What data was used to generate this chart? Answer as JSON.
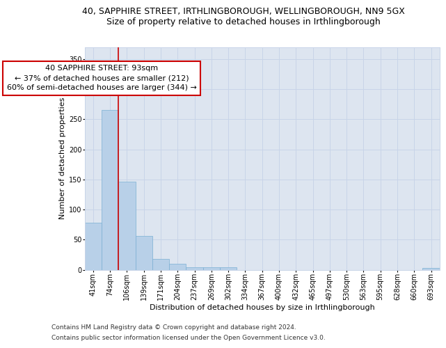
{
  "title_line1": "40, SAPPHIRE STREET, IRTHLINGBOROUGH, WELLINGBOROUGH, NN9 5GX",
  "title_line2": "Size of property relative to detached houses in Irthlingborough",
  "xlabel": "Distribution of detached houses by size in Irthlingborough",
  "ylabel": "Number of detached properties",
  "categories": [
    "41sqm",
    "74sqm",
    "106sqm",
    "139sqm",
    "171sqm",
    "204sqm",
    "237sqm",
    "269sqm",
    "302sqm",
    "334sqm",
    "367sqm",
    "400sqm",
    "432sqm",
    "465sqm",
    "497sqm",
    "530sqm",
    "563sqm",
    "595sqm",
    "628sqm",
    "660sqm",
    "693sqm"
  ],
  "values": [
    78,
    265,
    146,
    56,
    18,
    10,
    4,
    4,
    4,
    0,
    0,
    0,
    0,
    0,
    0,
    0,
    0,
    0,
    0,
    0,
    3
  ],
  "bar_color": "#b8d0e8",
  "bar_edge_color": "#7aafd4",
  "vline_index": 1.5,
  "vline_color": "#cc0000",
  "annotation_line1": "40 SAPPHIRE STREET: 93sqm",
  "annotation_line2": "← 37% of detached houses are smaller (212)",
  "annotation_line3": "60% of semi-detached houses are larger (344) →",
  "annotation_box_color": "#ffffff",
  "annotation_box_edge": "#cc0000",
  "ylim": [
    0,
    370
  ],
  "yticks": [
    0,
    50,
    100,
    150,
    200,
    250,
    300,
    350
  ],
  "grid_color": "#c8d4e8",
  "bg_color": "#dde5f0",
  "footer_line1": "Contains HM Land Registry data © Crown copyright and database right 2024.",
  "footer_line2": "Contains public sector information licensed under the Open Government Licence v3.0.",
  "title_fontsize": 9,
  "subtitle_fontsize": 9,
  "axis_label_fontsize": 8,
  "tick_fontsize": 7,
  "annotation_fontsize": 8,
  "footer_fontsize": 6.5
}
